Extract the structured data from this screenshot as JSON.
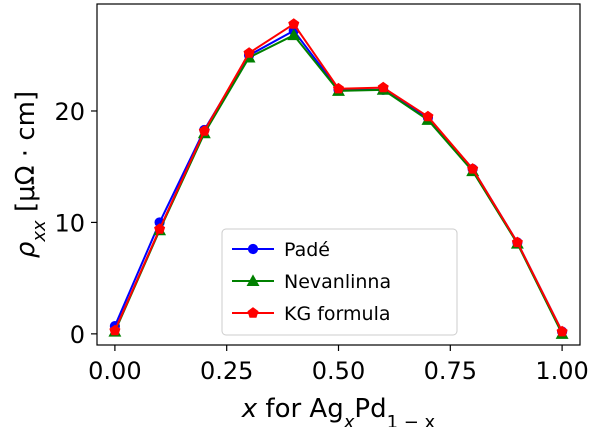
{
  "chart_data": {
    "type": "line",
    "x": [
      0.0,
      0.1,
      0.2,
      0.3,
      0.4,
      0.5,
      0.6,
      0.7,
      0.8,
      0.9,
      1.0
    ],
    "xlim": [
      -0.04,
      1.04
    ],
    "ylim": [
      -1.0,
      29.6
    ],
    "xticks": [
      0.0,
      0.25,
      0.5,
      0.75,
      1.0
    ],
    "xtick_labels": [
      "0.00",
      "0.25",
      "0.50",
      "0.75",
      "1.00"
    ],
    "yticks": [
      0,
      10,
      20
    ],
    "ytick_labels": [
      "0",
      "10",
      "20"
    ],
    "xlabel": {
      "italic": "x",
      "rest": " for Ag",
      "sub1": "x",
      "mid": "Pd",
      "sub2": "1 − x"
    },
    "ylabel": {
      "rho": "ρ",
      "sub": "xx",
      "unit": " [μΩ · cm]"
    },
    "legend_position": "lower-center",
    "series": [
      {
        "name": "Padé",
        "color": "#0000ff",
        "marker": "circle",
        "values": [
          0.7,
          10.0,
          18.3,
          25.0,
          27.2,
          21.9,
          21.9,
          19.4,
          14.8,
          8.2,
          0.2
        ]
      },
      {
        "name": "Nevanlinna",
        "color": "#008000",
        "marker": "triangle",
        "values": [
          0.2,
          9.3,
          18.0,
          24.8,
          26.8,
          21.8,
          21.9,
          19.2,
          14.6,
          8.1,
          0.0
        ]
      },
      {
        "name": "KG formula",
        "color": "#ff0000",
        "marker": "pentagon",
        "values": [
          0.3,
          9.4,
          18.2,
          25.2,
          27.8,
          22.0,
          22.1,
          19.5,
          14.8,
          8.2,
          0.2
        ]
      }
    ]
  }
}
